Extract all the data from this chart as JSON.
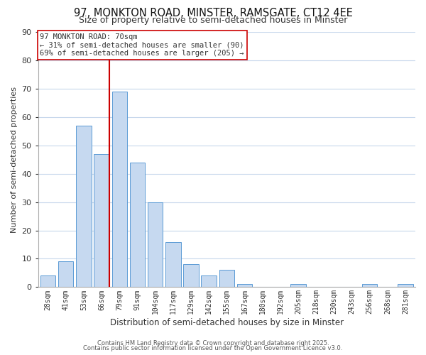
{
  "title": "97, MONKTON ROAD, MINSTER, RAMSGATE, CT12 4EE",
  "subtitle": "Size of property relative to semi-detached houses in Minster",
  "xlabel": "Distribution of semi-detached houses by size in Minster",
  "ylabel": "Number of semi-detached properties",
  "bar_labels": [
    "28sqm",
    "41sqm",
    "53sqm",
    "66sqm",
    "79sqm",
    "91sqm",
    "104sqm",
    "117sqm",
    "129sqm",
    "142sqm",
    "155sqm",
    "167sqm",
    "180sqm",
    "192sqm",
    "205sqm",
    "218sqm",
    "230sqm",
    "243sqm",
    "256sqm",
    "268sqm",
    "281sqm"
  ],
  "bar_values": [
    4,
    9,
    57,
    47,
    69,
    44,
    30,
    16,
    8,
    4,
    6,
    1,
    0,
    0,
    1,
    0,
    0,
    0,
    1,
    0,
    1
  ],
  "bar_color": "#c6d9f0",
  "bar_edge_color": "#5b9bd5",
  "vline_x_index": 3,
  "vline_color": "#cc0000",
  "ylim": [
    0,
    90
  ],
  "yticks": [
    0,
    10,
    20,
    30,
    40,
    50,
    60,
    70,
    80,
    90
  ],
  "annotation_title": "97 MONKTON ROAD: 70sqm",
  "annotation_line1": "← 31% of semi-detached houses are smaller (90)",
  "annotation_line2": "69% of semi-detached houses are larger (205) →",
  "annotation_box_color": "#ffffff",
  "annotation_box_edge": "#cc0000",
  "footer_line1": "Contains HM Land Registry data © Crown copyright and database right 2025.",
  "footer_line2": "Contains public sector information licensed under the Open Government Licence v3.0.",
  "bg_color": "#ffffff",
  "grid_color": "#c8d8ec",
  "title_fontsize": 10.5,
  "subtitle_fontsize": 9
}
